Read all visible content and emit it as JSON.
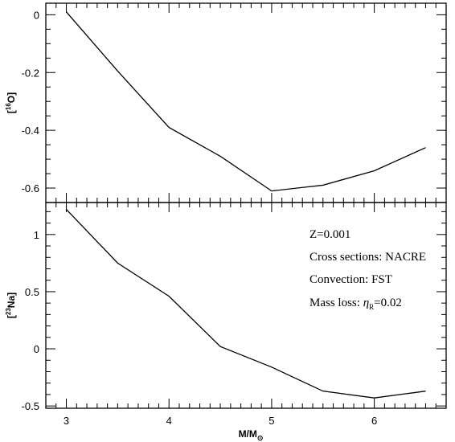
{
  "chart_data": [
    {
      "type": "line",
      "panel": "top",
      "xlabel": "",
      "ylabel": "[¹⁶O]",
      "ylabel_sup": "16",
      "ylabel_base": "O",
      "xlim": [
        2.8,
        6.7
      ],
      "ylim": [
        -0.65,
        0.04
      ],
      "yticks": [
        0,
        -0.2,
        -0.4,
        -0.6
      ],
      "ytick_labels": [
        "0",
        "-0.2",
        "-0.4",
        "-0.6"
      ],
      "series": [
        {
          "x": [
            3,
            3.5,
            4,
            4.5,
            5,
            5.5,
            6,
            6.5
          ],
          "y": [
            0.01,
            -0.195,
            -0.39,
            -0.49,
            -0.61,
            -0.59,
            -0.54,
            -0.46
          ]
        }
      ]
    },
    {
      "type": "line",
      "panel": "bottom",
      "xlabel": "M/M☉",
      "xlabel_base": "M/M",
      "xlabel_sub": "⊙",
      "ylabel": "[²³Na]",
      "ylabel_sup": "23",
      "ylabel_base": "Na",
      "xlim": [
        2.8,
        6.7
      ],
      "ylim": [
        -0.52,
        1.28
      ],
      "xticks": [
        3,
        4,
        5,
        6
      ],
      "xtick_labels": [
        "3",
        "4",
        "5",
        "6"
      ],
      "yticks": [
        1,
        0.5,
        0,
        -0.5
      ],
      "ytick_labels": [
        "1",
        "0.5",
        "0",
        "-0.5"
      ],
      "series": [
        {
          "x": [
            3,
            3.5,
            4,
            4.5,
            5,
            5.5,
            6,
            6.5
          ],
          "y": [
            1.22,
            0.75,
            0.46,
            0.02,
            -0.16,
            -0.37,
            -0.43,
            -0.37
          ]
        }
      ],
      "annotations": [
        "Z=0.001",
        "Cross sections: NACRE",
        "Convection: FST"
      ],
      "mass_loss": {
        "prefix": "Mass loss: ",
        "symbol": "η",
        "subscript": "R",
        "value": "=0.02"
      }
    }
  ]
}
